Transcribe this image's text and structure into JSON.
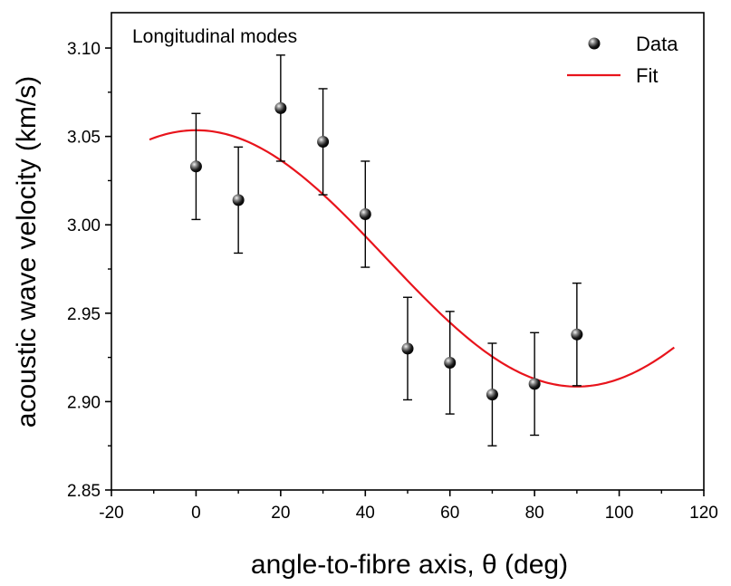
{
  "chart_data": {
    "type": "scatter",
    "title": "",
    "annotation": "Longitudinal modes",
    "xlabel": "angle-to-fibre axis, θ (deg)",
    "ylabel": "acoustic wave velocity (km/s)",
    "xlim": [
      -20,
      120
    ],
    "ylim": [
      2.85,
      3.12
    ],
    "x_ticks": [
      -20,
      0,
      20,
      40,
      60,
      80,
      100,
      120
    ],
    "x_tick_labels": [
      "-20",
      "0",
      "20",
      "40",
      "60",
      "80",
      "100",
      "120"
    ],
    "y_ticks": [
      2.85,
      2.9,
      2.95,
      3.0,
      3.05,
      3.1
    ],
    "y_tick_labels": [
      "2.85",
      "2.90",
      "2.95",
      "3.00",
      "3.05",
      "3.10"
    ],
    "grid": false,
    "legend": {
      "position": "top-right",
      "entries": [
        {
          "label": "Data",
          "type": "marker",
          "color": "#000000"
        },
        {
          "label": "Fit",
          "type": "line",
          "color": "#e8141c"
        }
      ]
    },
    "series": [
      {
        "name": "Data",
        "type": "scatter",
        "x": [
          0,
          10,
          20,
          30,
          40,
          50,
          60,
          70,
          80,
          90
        ],
        "y": [
          3.033,
          3.014,
          3.066,
          3.047,
          3.006,
          2.93,
          2.922,
          2.904,
          2.91,
          2.938
        ],
        "err": [
          0.03,
          0.03,
          0.03,
          0.03,
          0.03,
          0.029,
          0.029,
          0.029,
          0.029,
          0.029
        ]
      },
      {
        "name": "Fit",
        "type": "line",
        "x_range": [
          -11,
          113
        ],
        "model": {
          "offset": 2.981,
          "amplitude": 0.0725,
          "period": 180,
          "phase": 0
        }
      }
    ]
  },
  "colors": {
    "fit": "#e8141c",
    "data": "#000000",
    "axis": "#000000"
  }
}
